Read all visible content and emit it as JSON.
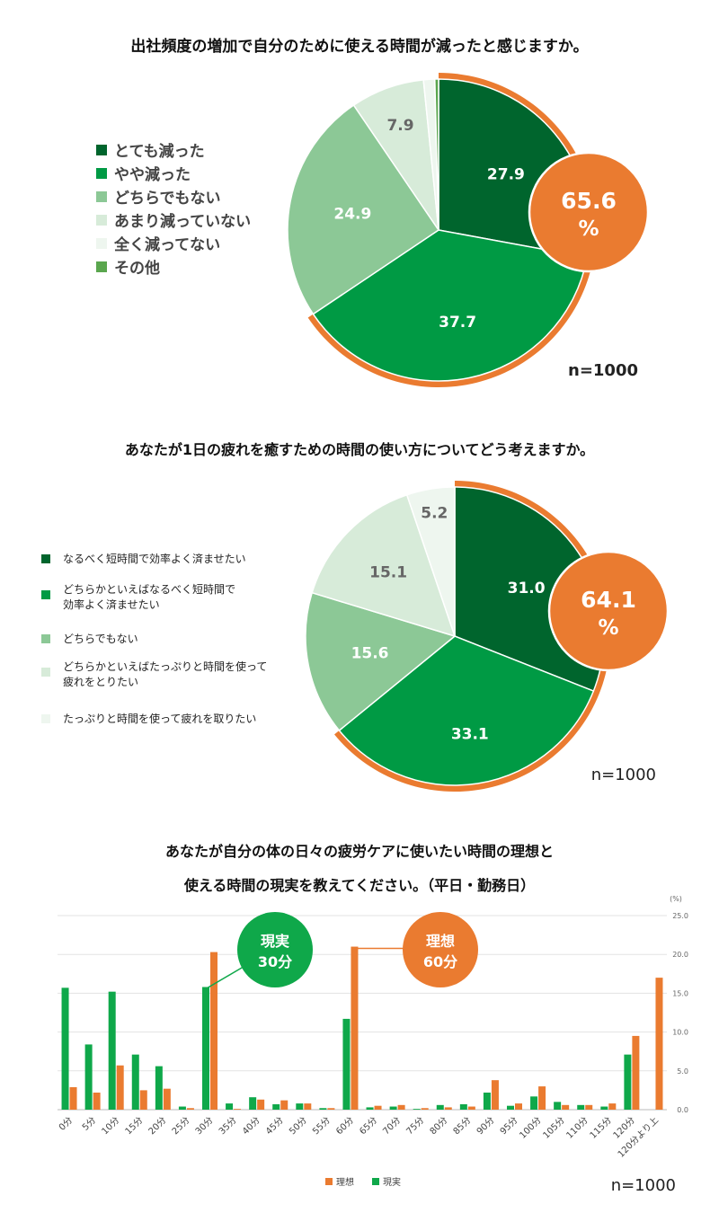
{
  "colors": {
    "dark_green": "#00652d",
    "green": "#009a44",
    "mid_green": "#8cc896",
    "light_green": "#d7ebd9",
    "pale_green": "#eef6ef",
    "olive_green": "#5aa64e",
    "orange": "#ea7b30",
    "bar_green": "#0fa84a"
  },
  "chart_data": [
    {
      "type": "pie",
      "title": "出社頻度の増加で自分のために使える時間が減ったと感じますか。",
      "labels": [
        "とても減った",
        "やや減った",
        "どちらでもない",
        "あまり減っていない",
        "全く減ってない",
        "その他"
      ],
      "values": [
        27.9,
        37.7,
        24.9,
        7.9,
        1.2,
        0.4
      ],
      "value_labels": [
        "27.9",
        "37.7",
        "24.9",
        "7.9",
        "",
        ""
      ],
      "highlight_total": "65.6",
      "highlight_unit": "%",
      "n_label": "n=1000"
    },
    {
      "type": "pie",
      "title": "あなたが1日の疲れを癒すための時間の使い方についてどう考えますか。",
      "labels": [
        "なるべく短時間で効率よく済ませたい",
        "どちらかといえばなるべく短時間で\n効率よく済ませたい",
        "どちらでもない",
        "どちらかといえばたっぷりと時間を使って\n疲れをとりたい",
        "たっぷりと時間を使って疲れを取りたい"
      ],
      "values": [
        31.0,
        33.1,
        15.6,
        15.1,
        5.2
      ],
      "value_labels": [
        "31.0",
        "33.1",
        "15.6",
        "15.1",
        "5.2"
      ],
      "highlight_total": "64.1",
      "highlight_unit": "%",
      "n_label": "n=1000"
    },
    {
      "type": "bar",
      "title_line1": "あなたが自分の体の日々の疲労ケアに使いたい時間の理想と",
      "title_line2": "使える時間の現実を教えてください。（平日・勤務日）",
      "unit_label": "(%)",
      "categories": [
        "0分",
        "5分",
        "10分",
        "15分",
        "20分",
        "25分",
        "30分",
        "35分",
        "40分",
        "45分",
        "50分",
        "55分",
        "60分",
        "65分",
        "70分",
        "75分",
        "80分",
        "85分",
        "90分",
        "95分",
        "100分",
        "105分",
        "110分",
        "115分",
        "120分",
        "120分より上"
      ],
      "series": [
        {
          "name": "現実",
          "values": [
            15.7,
            8.4,
            15.2,
            7.1,
            5.6,
            0.4,
            15.8,
            0.8,
            1.6,
            0.7,
            0.8,
            0.2,
            11.7,
            0.3,
            0.4,
            0.1,
            0.6,
            0.7,
            2.2,
            0.5,
            1.7,
            1.0,
            0.6,
            0.4,
            7.1,
            0.0
          ]
        },
        {
          "name": "理想",
          "values": [
            2.9,
            2.2,
            5.7,
            2.5,
            2.7,
            0.2,
            20.3,
            0.1,
            1.3,
            1.2,
            0.8,
            0.2,
            21.0,
            0.5,
            0.6,
            0.2,
            0.3,
            0.4,
            3.8,
            0.8,
            3.0,
            0.6,
            0.6,
            0.8,
            9.5,
            17.0
          ]
        }
      ],
      "ylim": [
        0,
        25
      ],
      "yticks": [
        "0.0",
        "5.0",
        "10.0",
        "15.0",
        "20.0",
        "25.0"
      ],
      "legend": [
        "理想",
        "現実"
      ],
      "callouts": [
        {
          "line1": "現実",
          "line2": "30分",
          "category": "30分",
          "series": "現実"
        },
        {
          "line1": "理想",
          "line2": "60分",
          "category": "60分",
          "series": "理想"
        }
      ],
      "n_label": "n=1000"
    }
  ]
}
